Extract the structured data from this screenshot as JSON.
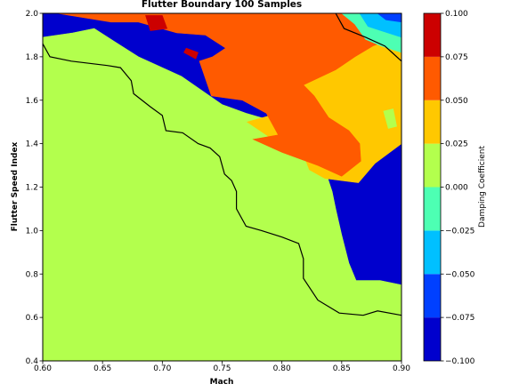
{
  "chart_data": {
    "type": "contourf",
    "title": "Flutter Boundary 100 Samples",
    "xlabel": "Mach",
    "ylabel": "Flutter Speed Index",
    "xlim": [
      0.6,
      0.9
    ],
    "ylim": [
      0.4,
      2.0
    ],
    "xticks": [
      {
        "value": 0.6,
        "label": "0.60"
      },
      {
        "value": 0.65,
        "label": "0.65"
      },
      {
        "value": 0.7,
        "label": "0.70"
      },
      {
        "value": 0.75,
        "label": "0.75"
      },
      {
        "value": 0.8,
        "label": "0.80"
      },
      {
        "value": 0.85,
        "label": "0.85"
      },
      {
        "value": 0.9,
        "label": "0.90"
      }
    ],
    "yticks": [
      {
        "value": 0.4,
        "label": "0.4"
      },
      {
        "value": 0.6,
        "label": "0.6"
      },
      {
        "value": 0.8,
        "label": "0.8"
      },
      {
        "value": 1.0,
        "label": "1.0"
      },
      {
        "value": 1.2,
        "label": "1.2"
      },
      {
        "value": 1.4,
        "label": "1.4"
      },
      {
        "value": 1.6,
        "label": "1.6"
      },
      {
        "value": 1.8,
        "label": "1.8"
      },
      {
        "value": 2.0,
        "label": "2.0"
      }
    ],
    "colorbar": {
      "label": "Damping Coefficient",
      "levels": [
        -0.1,
        -0.075,
        -0.05,
        -0.025,
        0.0,
        0.025,
        0.05,
        0.075,
        0.1
      ],
      "tick_labels": [
        "−0.100",
        "−0.075",
        "−0.050",
        "−0.025",
        "0.000",
        "0.025",
        "0.050",
        "0.075",
        "0.100"
      ],
      "colors": [
        "#0000cd",
        "#0040ff",
        "#00c0ff",
        "#4dffb3",
        "#b3ff4d",
        "#ffc800",
        "#ff5a00",
        "#cc0000"
      ]
    },
    "regions": [
      {
        "level": 1,
        "points": [
          [
            0.6,
            0.52
          ],
          [
            0.608,
            0.58
          ],
          [
            0.62,
            0.65
          ],
          [
            0.634,
            0.76
          ],
          [
            0.627,
            0.86
          ],
          [
            0.63,
            0.95
          ],
          [
            0.651,
            1.09
          ],
          [
            0.64,
            1.12
          ],
          [
            0.617,
            1.22
          ],
          [
            0.617,
            1.31
          ],
          [
            0.6,
            1.41
          ]
        ]
      },
      {
        "level": 1,
        "points": [
          [
            0.605,
            0.59
          ],
          [
            0.624,
            0.61
          ],
          [
            0.655,
            0.62
          ],
          [
            0.68,
            0.62
          ],
          [
            0.706,
            0.6
          ],
          [
            0.68,
            0.58
          ],
          [
            0.64,
            0.57
          ],
          [
            0.615,
            0.58
          ]
        ]
      },
      {
        "level": 2,
        "points": [
          [
            0.6,
            0.4
          ],
          [
            0.6,
            1.48
          ],
          [
            0.62,
            1.44
          ],
          [
            0.655,
            1.4
          ],
          [
            0.67,
            1.35
          ],
          [
            0.683,
            1.25
          ],
          [
            0.68,
            1.12
          ],
          [
            0.678,
            0.96
          ],
          [
            0.683,
            0.87
          ],
          [
            0.708,
            0.82
          ],
          [
            0.725,
            0.81
          ],
          [
            0.755,
            0.79
          ],
          [
            0.766,
            0.66
          ],
          [
            0.783,
            0.55
          ],
          [
            0.8,
            0.48
          ],
          [
            0.817,
            0.4
          ]
        ]
      },
      {
        "level": 3,
        "points": [
          [
            0.6,
            0.4
          ],
          [
            0.6,
            1.66
          ],
          [
            0.632,
            1.62
          ],
          [
            0.654,
            1.54
          ],
          [
            0.674,
            1.48
          ],
          [
            0.695,
            1.42
          ],
          [
            0.715,
            1.3
          ],
          [
            0.722,
            1.22
          ],
          [
            0.728,
            1.15
          ],
          [
            0.726,
            1.06
          ],
          [
            0.743,
            0.97
          ],
          [
            0.77,
            0.98
          ],
          [
            0.8,
            0.96
          ],
          [
            0.818,
            0.92
          ],
          [
            0.815,
            0.78
          ],
          [
            0.83,
            0.67
          ],
          [
            0.848,
            0.6
          ],
          [
            0.9,
            0.55
          ],
          [
            0.9,
            0.4
          ]
        ]
      },
      {
        "level": 4,
        "points": [
          [
            0.6,
            0.4
          ],
          [
            0.6,
            1.89
          ],
          [
            0.625,
            1.91
          ],
          [
            0.643,
            1.93
          ],
          [
            0.66,
            1.87
          ],
          [
            0.68,
            1.8
          ],
          [
            0.716,
            1.71
          ],
          [
            0.75,
            1.58
          ],
          [
            0.77,
            1.54
          ],
          [
            0.795,
            1.5
          ],
          [
            0.818,
            1.46
          ],
          [
            0.827,
            1.4
          ],
          [
            0.836,
            1.28
          ],
          [
            0.842,
            1.18
          ],
          [
            0.845,
            1.1
          ],
          [
            0.85,
            0.98
          ],
          [
            0.856,
            0.85
          ],
          [
            0.862,
            0.77
          ],
          [
            0.882,
            0.77
          ],
          [
            0.9,
            0.75
          ],
          [
            0.9,
            0.4
          ]
        ]
      },
      {
        "level": 5,
        "points": [
          [
            0.6,
            2.0
          ],
          [
            0.722,
            2.0
          ],
          [
            0.748,
            1.92
          ],
          [
            0.774,
            1.86
          ],
          [
            0.79,
            1.8
          ],
          [
            0.808,
            1.71
          ],
          [
            0.79,
            1.66
          ],
          [
            0.797,
            1.54
          ],
          [
            0.771,
            1.5
          ],
          [
            0.787,
            1.44
          ],
          [
            0.795,
            1.41
          ],
          [
            0.818,
            1.35
          ],
          [
            0.823,
            1.28
          ],
          [
            0.836,
            1.24
          ],
          [
            0.864,
            1.22
          ],
          [
            0.878,
            1.31
          ],
          [
            0.9,
            1.4
          ],
          [
            0.9,
            1.96
          ],
          [
            0.874,
            1.98
          ],
          [
            0.85,
            1.95
          ],
          [
            0.836,
            1.99
          ]
        ]
      },
      {
        "level": 6,
        "points": [
          [
            0.612,
            2.0
          ],
          [
            0.657,
            1.96
          ],
          [
            0.68,
            1.96
          ],
          [
            0.712,
            1.91
          ],
          [
            0.736,
            1.9
          ],
          [
            0.753,
            1.84
          ],
          [
            0.742,
            1.8
          ],
          [
            0.731,
            1.78
          ],
          [
            0.741,
            1.62
          ],
          [
            0.767,
            1.6
          ],
          [
            0.787,
            1.54
          ],
          [
            0.797,
            1.44
          ],
          [
            0.776,
            1.42
          ],
          [
            0.8,
            1.36
          ],
          [
            0.83,
            1.3
          ],
          [
            0.85,
            1.25
          ],
          [
            0.866,
            1.32
          ],
          [
            0.865,
            1.4
          ],
          [
            0.856,
            1.46
          ],
          [
            0.839,
            1.52
          ],
          [
            0.827,
            1.62
          ],
          [
            0.818,
            1.67
          ],
          [
            0.845,
            1.74
          ],
          [
            0.861,
            1.8
          ],
          [
            0.876,
            1.85
          ],
          [
            0.9,
            1.9
          ],
          [
            0.9,
            2.0
          ]
        ]
      },
      {
        "level": 7,
        "points": [
          [
            0.686,
            1.99
          ],
          [
            0.7,
            1.99
          ],
          [
            0.704,
            1.93
          ],
          [
            0.69,
            1.92
          ]
        ]
      },
      {
        "level": 7,
        "points": [
          [
            0.72,
            1.84
          ],
          [
            0.73,
            1.82
          ],
          [
            0.728,
            1.79
          ],
          [
            0.718,
            1.82
          ]
        ]
      },
      {
        "level": 4,
        "points": [
          [
            0.885,
            1.55
          ],
          [
            0.893,
            1.56
          ],
          [
            0.896,
            1.48
          ],
          [
            0.889,
            1.47
          ]
        ]
      },
      {
        "level": 3,
        "points": [
          [
            0.85,
            2.0
          ],
          [
            0.861,
            1.95
          ],
          [
            0.87,
            1.88
          ],
          [
            0.883,
            1.85
          ],
          [
            0.9,
            1.82
          ],
          [
            0.9,
            2.0
          ]
        ]
      },
      {
        "level": 2,
        "points": [
          [
            0.865,
            2.0
          ],
          [
            0.872,
            1.94
          ],
          [
            0.883,
            1.92
          ],
          [
            0.9,
            1.89
          ],
          [
            0.9,
            2.0
          ]
        ]
      },
      {
        "level": 1,
        "points": [
          [
            0.88,
            2.0
          ],
          [
            0.887,
            1.97
          ],
          [
            0.9,
            1.96
          ],
          [
            0.9,
            2.0
          ]
        ]
      }
    ],
    "boundary": [
      [
        [
          0.6,
          1.86
        ],
        [
          0.606,
          1.8
        ],
        [
          0.624,
          1.78
        ],
        [
          0.654,
          1.76
        ],
        [
          0.665,
          1.75
        ],
        [
          0.674,
          1.69
        ],
        [
          0.676,
          1.63
        ],
        [
          0.69,
          1.57
        ],
        [
          0.7,
          1.53
        ],
        [
          0.703,
          1.46
        ],
        [
          0.717,
          1.45
        ],
        [
          0.73,
          1.4
        ],
        [
          0.74,
          1.38
        ],
        [
          0.748,
          1.34
        ],
        [
          0.752,
          1.26
        ],
        [
          0.758,
          1.23
        ],
        [
          0.762,
          1.18
        ],
        [
          0.762,
          1.1
        ],
        [
          0.77,
          1.02
        ],
        [
          0.783,
          1.0
        ],
        [
          0.8,
          0.97
        ],
        [
          0.814,
          0.94
        ],
        [
          0.818,
          0.87
        ],
        [
          0.818,
          0.78
        ],
        [
          0.83,
          0.68
        ],
        [
          0.848,
          0.62
        ],
        [
          0.868,
          0.61
        ],
        [
          0.88,
          0.63
        ],
        [
          0.9,
          0.61
        ]
      ],
      [
        [
          0.845,
          2.0
        ],
        [
          0.852,
          1.93
        ],
        [
          0.87,
          1.89
        ],
        [
          0.886,
          1.85
        ],
        [
          0.892,
          1.82
        ],
        [
          0.9,
          1.78
        ]
      ]
    ]
  }
}
